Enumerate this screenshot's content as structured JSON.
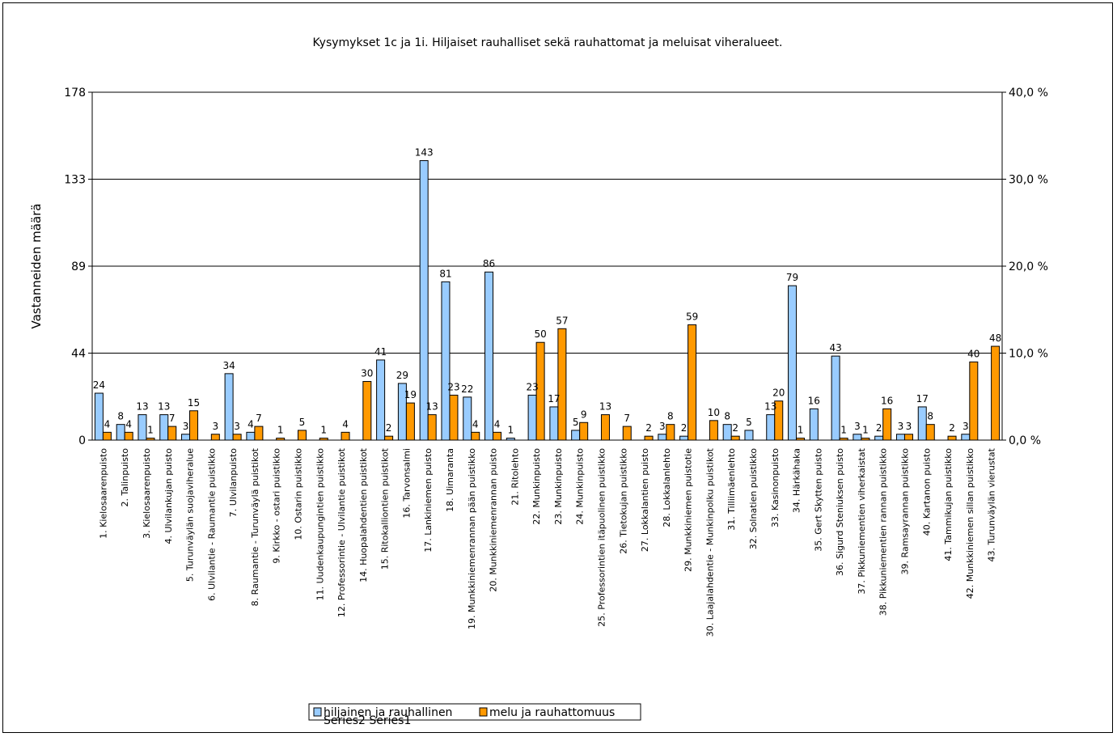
{
  "chart_data": {
    "type": "bar",
    "title": "Kysymykset 1c ja 1i. Hiljaiset rauhalliset sekä rauhattomat ja meluisat viheralueet.",
    "ylabel": "Vastanneiden määrä",
    "ylim": [
      0,
      178
    ],
    "y_ticks": [
      "0",
      "44",
      "89",
      "133",
      "178"
    ],
    "y2lim": [
      0,
      40
    ],
    "y2_ticks": [
      "0,0 %",
      "10,0 %",
      "20,0 %",
      "30,0 %",
      "40,0 %"
    ],
    "grid": "horizontal",
    "legend_position": "bottom",
    "categories": [
      "1. Kielosaarenpuisto",
      "2. Talinpuisto",
      "3. Kielosaarenpuisto",
      "4. Ulvilankujan puisto",
      "5. Turunväylän suojaviheralue",
      "6. Ulvilantie - Raumantie puistikko",
      "7. Ulvilanpuisto",
      "8. Raumantie - Turunväylä puistikot",
      "9. Kirkko - ostari puistikko",
      "10. Ostarin puistikko",
      "11. Uudenkaupungintien puistikko",
      "12. Professorintie - Ulvilantie puistikot",
      "14. Huopalahdentien puistikot",
      "15. Ritokalliontien puistikot",
      "16. Tarvonsalmi",
      "17. Lankiniemen puisto",
      "18. Uimaranta",
      "19. Munkkiniemenrannan pään puistikko",
      "20. Munkkiniemenrannan puisto",
      "21. Ritolehto",
      "22. Munkinpuisto",
      "23. Munkinpuisto",
      "24. Munkinpuisto",
      "25. Professorintien itäpuolinen puistikko",
      "26. Tietokujan puistikko",
      "27. Lokkalantien puisto",
      "28. Lokkalanlehto",
      "29. Munkkiniemen puistotie",
      "30. Laajalahdentie - Munkinpolku puistikot",
      "31. Tilliimäenlehto",
      "32. Solnatien puistikko",
      "33. Kasinonpuisto",
      "34. Härkähaka",
      "35. Gert Skytten puisto",
      "36. Sigurd Steniuksen puisto",
      "37. Pikkuniementien viherkaistat",
      "38. Pikkuniementien rannan puistikko",
      "39. Ramsayrannan puistikko",
      "40. Kartanon puisto",
      "41. Tammikujan puistikko",
      "42. Munkkiniemen sillan puistikko",
      "43. Turunväylän vierustat"
    ],
    "series": [
      {
        "name": "hiljainen ja rauhallinen",
        "color": "#99ccff",
        "values": [
          24,
          8,
          13,
          13,
          3,
          null,
          34,
          4,
          null,
          null,
          null,
          null,
          null,
          41,
          29,
          143,
          81,
          22,
          86,
          1,
          23,
          17,
          5,
          null,
          null,
          null,
          3,
          2,
          null,
          8,
          5,
          13,
          79,
          16,
          43,
          3,
          2,
          3,
          17,
          null,
          3,
          null
        ]
      },
      {
        "name": "melu ja rauhattomuus",
        "color": "#ff9900",
        "values": [
          4,
          4,
          1,
          7,
          15,
          3,
          3,
          7,
          1,
          5,
          1,
          4,
          30,
          2,
          19,
          13,
          23,
          4,
          4,
          null,
          50,
          57,
          9,
          13,
          7,
          2,
          8,
          59,
          10,
          2,
          null,
          20,
          1,
          null,
          1,
          1,
          16,
          3,
          8,
          2,
          40,
          48
        ]
      }
    ]
  },
  "legend": {
    "overlay_text": "Series2 Series1"
  }
}
